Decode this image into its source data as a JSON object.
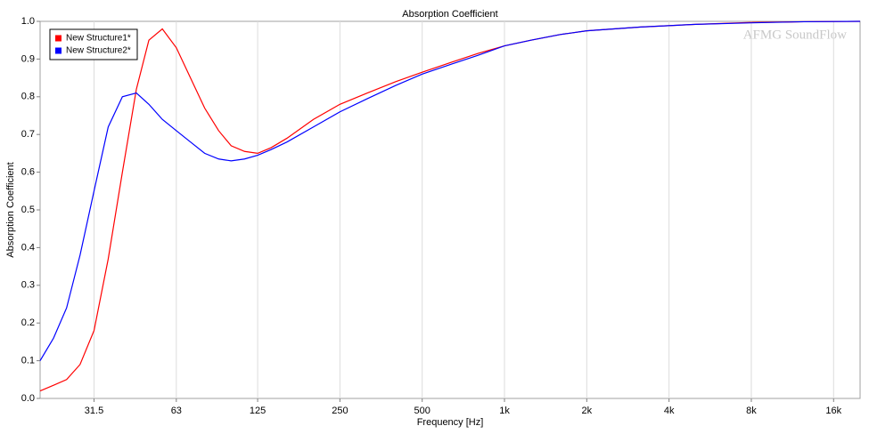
{
  "chart_data": {
    "type": "line",
    "title": "Absorption Coefficient",
    "xlabel": "Frequency [Hz]",
    "ylabel": "Absorption Coefficient",
    "watermark": "AFMG SoundFlow",
    "xscale": "log",
    "grid": "x",
    "legend": "upper left",
    "xlim": [
      20,
      20000
    ],
    "ylim": [
      0,
      1
    ],
    "xticks": [
      31.5,
      63,
      125,
      250,
      500,
      {
        "value": 1000,
        "label": "1k"
      },
      {
        "value": 2000,
        "label": "2k"
      },
      {
        "value": 4000,
        "label": "4k"
      },
      {
        "value": 8000,
        "label": "8k"
      },
      {
        "value": 16000,
        "label": "16k"
      }
    ],
    "yticks": [
      {
        "value": 0,
        "label": "0.0"
      },
      0.1,
      0.2,
      0.3,
      0.4,
      0.5,
      0.6,
      0.7,
      0.8,
      0.9,
      {
        "value": 1,
        "label": "1.0"
      }
    ],
    "x": [
      20,
      22.4,
      25,
      28,
      31.5,
      35.5,
      40,
      45,
      50,
      56,
      63,
      71,
      80,
      90,
      100,
      112,
      125,
      140,
      160,
      200,
      250,
      315,
      400,
      500,
      630,
      800,
      1000,
      1250,
      1600,
      2000,
      3150,
      5000,
      8000,
      12500,
      20000
    ],
    "series": [
      {
        "name": "New Structure1*",
        "color": "#ff0000",
        "values": [
          0.02,
          0.035,
          0.05,
          0.09,
          0.18,
          0.37,
          0.6,
          0.82,
          0.95,
          0.98,
          0.93,
          0.85,
          0.77,
          0.71,
          0.67,
          0.655,
          0.65,
          0.665,
          0.69,
          0.74,
          0.78,
          0.81,
          0.84,
          0.865,
          0.89,
          0.915,
          0.935,
          0.95,
          0.965,
          0.975,
          0.985,
          0.992,
          0.997,
          0.999,
          1.0
        ]
      },
      {
        "name": "New Structure2*",
        "color": "#0000ff",
        "values": [
          0.1,
          0.16,
          0.24,
          0.38,
          0.55,
          0.72,
          0.8,
          0.81,
          0.78,
          0.74,
          0.71,
          0.68,
          0.65,
          0.635,
          0.63,
          0.635,
          0.645,
          0.66,
          0.68,
          0.72,
          0.76,
          0.795,
          0.83,
          0.86,
          0.885,
          0.91,
          0.935,
          0.95,
          0.965,
          0.975,
          0.985,
          0.992,
          0.996,
          0.999,
          1.0
        ]
      }
    ]
  }
}
